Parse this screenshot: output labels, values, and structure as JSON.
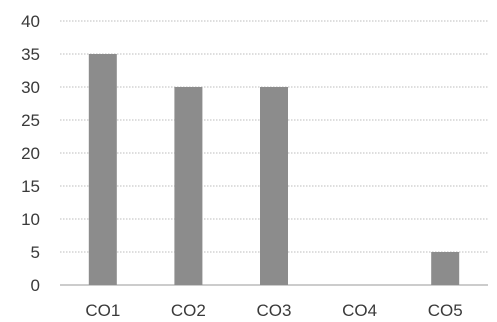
{
  "chart_data": {
    "type": "bar",
    "title": "",
    "xlabel": "",
    "ylabel": "",
    "categories": [
      "CO1",
      "CO2",
      "CO3",
      "CO4",
      "CO5"
    ],
    "values": [
      35,
      30,
      30,
      0,
      5
    ],
    "ylim": [
      0,
      40
    ],
    "yticks": [
      "0",
      "5",
      "10",
      "15",
      "20",
      "25",
      "30",
      "35",
      "40"
    ],
    "grid": true,
    "legend": "none",
    "bar_color": "#8c8c8c"
  }
}
